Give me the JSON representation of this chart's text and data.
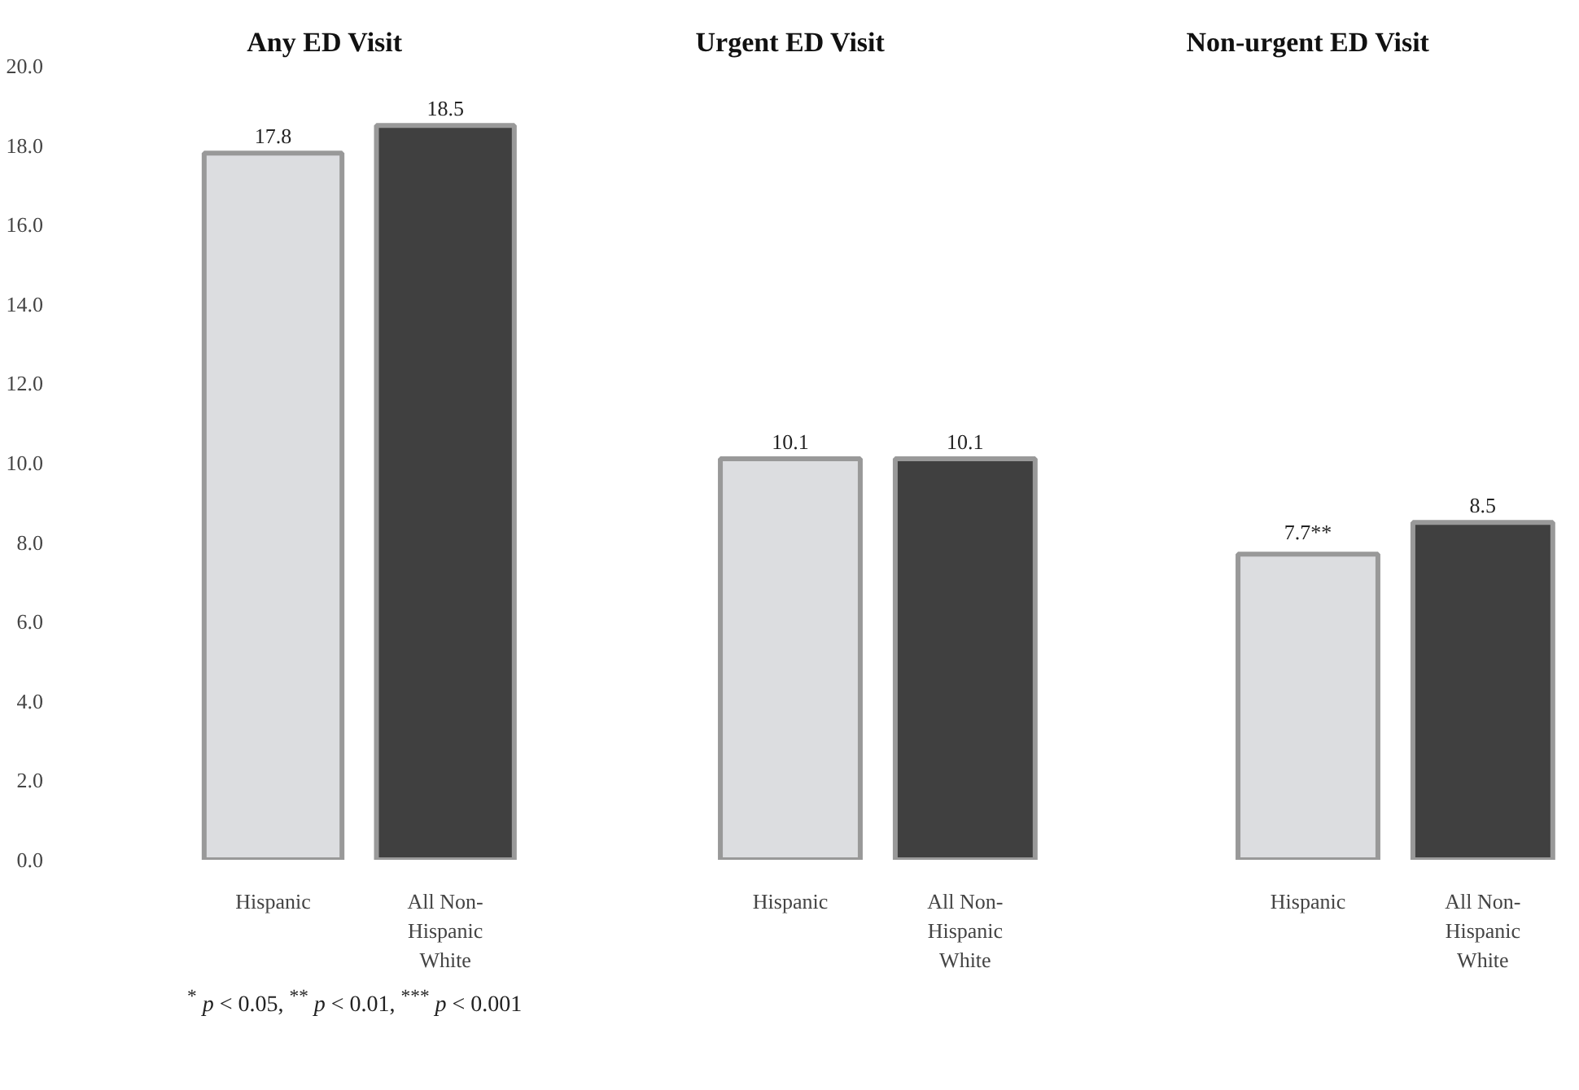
{
  "chart_data": [
    {
      "type": "bar",
      "title": "Any ED Visit",
      "categories": [
        "Hispanic",
        "All Non-\nHispanic\nWhite"
      ],
      "values": [
        17.8,
        18.5
      ],
      "colors": [
        "#dcdde0",
        "#404040"
      ],
      "value_labels": [
        "17.8",
        "18.5"
      ],
      "ylim": [
        0,
        20
      ],
      "yticks": [
        {
          "value": 0,
          "label": "0.0"
        },
        {
          "value": 2,
          "label": "2.0"
        },
        {
          "value": 4,
          "label": "4.0"
        },
        {
          "value": 6,
          "label": "6.0"
        },
        {
          "value": 8,
          "label": "8.0"
        },
        {
          "value": 10,
          "label": "10.0"
        },
        {
          "value": 12,
          "label": "12.0"
        },
        {
          "value": 14,
          "label": "14.0"
        },
        {
          "value": 16,
          "label": "16.0"
        },
        {
          "value": 18,
          "label": "18.0"
        },
        {
          "value": 20,
          "label": "20.0"
        }
      ],
      "grid": false,
      "annotations": [
        "$^{*}$ p < 0.05, $^{**}$ p < 0.01, $^{***}$ p < 0.001"
      ]
    },
    {
      "type": "bar",
      "title": "Urgent ED Visit",
      "categories": [
        "Hispanic",
        "All Non-\nHispanic\nWhite"
      ],
      "values": [
        10.1,
        10.1
      ],
      "colors": [
        "#dcdde0",
        "#404040"
      ],
      "value_labels": [
        "10.1",
        "10.1"
      ],
      "ylim": [
        0,
        20
      ],
      "grid": false,
      "tick_labels": "x"
    },
    {
      "type": "bar",
      "title": "Non-urgent ED Visit",
      "categories": [
        "Hispanic",
        "All Non-\nHispanic\nWhite"
      ],
      "values": [
        7.7,
        8.5
      ],
      "colors": [
        "#dcdde0",
        "#404040"
      ],
      "value_labels": [
        "7.7**",
        "8.5"
      ],
      "ylim": [
        0,
        20
      ],
      "grid": false,
      "tick_labels": "x"
    }
  ]
}
